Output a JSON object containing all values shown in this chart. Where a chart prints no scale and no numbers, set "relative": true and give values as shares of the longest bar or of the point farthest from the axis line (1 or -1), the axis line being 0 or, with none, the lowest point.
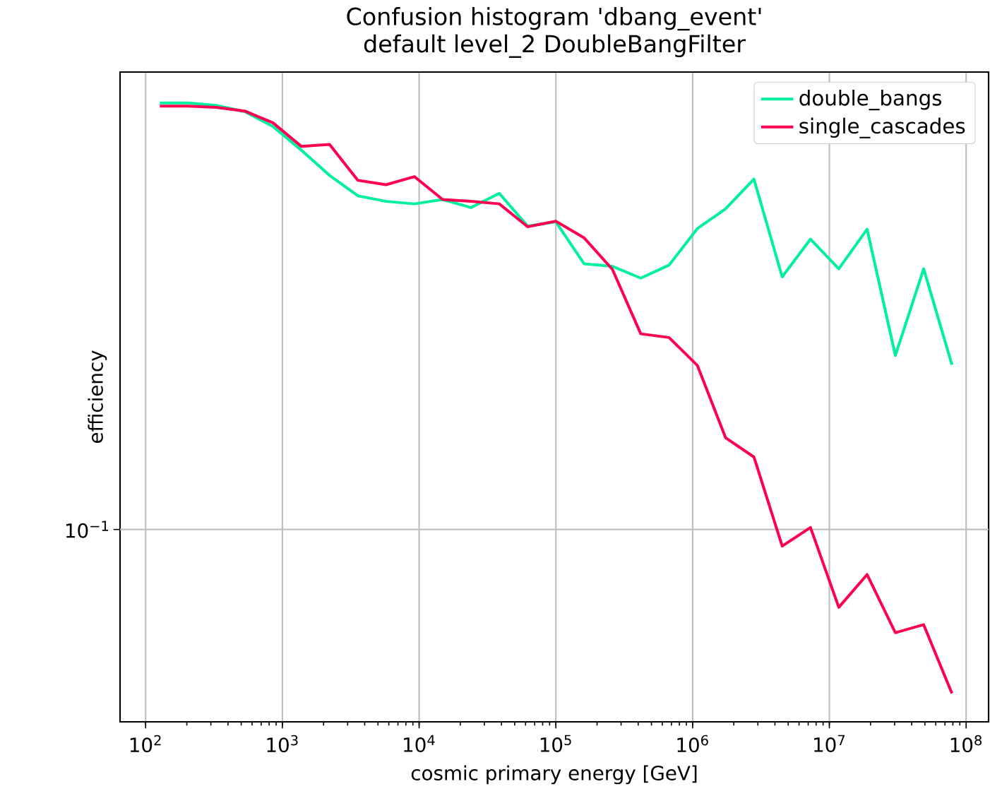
{
  "chart_data": {
    "type": "line",
    "title": "Confusion histogram 'dbang_event'",
    "subtitle": "default level_2 DoubleBangFilter",
    "xlabel": "cosmic primary energy [GeV]",
    "ylabel": "efficiency",
    "log": "x",
    "grid": "x",
    "legend": "top right",
    "relative": true,
    "xlim": [
      65,
      146000000
    ],
    "xticks": [
      {
        "value": 100,
        "label": "10$^{2}$"
      },
      {
        "value": 1000,
        "label": "10$^{3}$"
      },
      {
        "value": 10000,
        "label": "10$^{4}$"
      },
      {
        "value": 100000,
        "label": "10$^{5}$"
      },
      {
        "value": 1000000,
        "label": "10$^{6}$"
      },
      {
        "value": 10000000,
        "label": "10$^{7}$"
      },
      {
        "value": 100000000,
        "label": "10$^{8}$"
      }
    ],
    "annotations": [
      "10$^{−1}$"
    ],
    "x": [
      126.9,
      204.3,
      329.0,
      529.8,
      853.1,
      1374,
      2212,
      3562,
      5736,
      9237,
      14874,
      23950,
      38566,
      62102,
      100000,
      161026,
      259290,
      417521,
      672310,
      1082600,
      1743300,
      2807200,
      4520300,
      7278900,
      11721000,
      18874000,
      30391000,
      48937000,
      78805000
    ],
    "series": [
      {
        "name": "double_bangs",
        "color": "#00f0a0",
        "values": [
          1,
          1,
          0.996,
          0.986,
          0.962,
          0.924,
          0.883,
          0.85,
          0.841,
          0.837,
          0.844,
          0.831,
          0.854,
          0.801,
          0.808,
          0.74,
          0.736,
          0.717,
          0.738,
          0.797,
          0.829,
          0.877,
          0.719,
          0.78,
          0.732,
          0.796,
          0.592,
          0.732,
          0.577
        ]
      },
      {
        "name": "single_cascades",
        "color": "#ff0050",
        "values": [
          0.995,
          0.995,
          0.993,
          0.987,
          0.968,
          0.93,
          0.933,
          0.875,
          0.868,
          0.881,
          0.844,
          0.841,
          0.837,
          0.8,
          0.809,
          0.782,
          0.731,
          0.627,
          0.621,
          0.576,
          0.459,
          0.428,
          0.284,
          0.314,
          0.185,
          0.238,
          0.144,
          0.157,
          0.046
        ]
      }
    ]
  }
}
